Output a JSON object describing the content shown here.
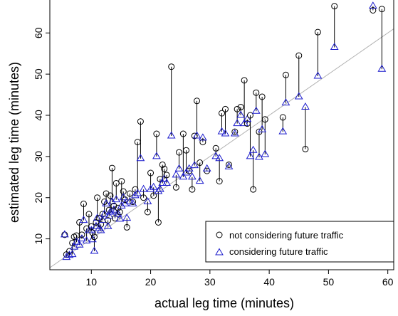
{
  "chart_data": {
    "type": "scatter",
    "title": "",
    "xlabel": "actual leg time (minutes)",
    "ylabel": "estimated leg time (minutes)",
    "xlim": [
      3,
      61
    ],
    "ylim": [
      2.5,
      68
    ],
    "xticks": [
      10,
      20,
      30,
      40,
      50,
      60
    ],
    "yticks": [
      10,
      20,
      30,
      40,
      50,
      60
    ],
    "grid": false,
    "legend_position": "bottom-right",
    "reference_line": {
      "from": [
        3,
        3
      ],
      "to": [
        61,
        61
      ],
      "color": "#b0b0b0"
    },
    "series": [
      {
        "name": "not considering future traffic",
        "marker": "circle",
        "color": "#000000"
      },
      {
        "name": "considering future traffic",
        "marker": "triangle",
        "color": "#1a1acc"
      }
    ],
    "pairs": [
      [
        5.5,
        11.0,
        11.0
      ],
      [
        5.8,
        6.2,
        5.5
      ],
      [
        6.3,
        7.0,
        6.0
      ],
      [
        6.8,
        9.0,
        6.2
      ],
      [
        7.1,
        10.5,
        8.0
      ],
      [
        7.5,
        10.8,
        9.2
      ],
      [
        8.0,
        14.0,
        8.5
      ],
      [
        8.4,
        11.0,
        10.0
      ],
      [
        8.7,
        18.5,
        14.5
      ],
      [
        9.2,
        12.5,
        9.5
      ],
      [
        9.6,
        16.0,
        12.0
      ],
      [
        10.0,
        13.0,
        12.0
      ],
      [
        10.2,
        11.5,
        9.8
      ],
      [
        10.5,
        10.5,
        7.0
      ],
      [
        10.8,
        14.0,
        13.0
      ],
      [
        11.0,
        20.0,
        15.0
      ],
      [
        11.3,
        15.0,
        12.5
      ],
      [
        11.6,
        13.5,
        12.0
      ],
      [
        11.9,
        16.0,
        14.5
      ],
      [
        12.2,
        19.0,
        16.0
      ],
      [
        12.5,
        21.0,
        18.5
      ],
      [
        12.8,
        14.5,
        13.0
      ],
      [
        13.0,
        17.0,
        15.5
      ],
      [
        13.2,
        20.5,
        16.5
      ],
      [
        13.5,
        27.2,
        19.0
      ],
      [
        13.8,
        18.0,
        17.0
      ],
      [
        14.0,
        15.0,
        16.5
      ],
      [
        14.2,
        23.5,
        19.5
      ],
      [
        14.5,
        17.5,
        16.0
      ],
      [
        14.8,
        16.5,
        14.8
      ],
      [
        15.1,
        24.0,
        18.0
      ],
      [
        15.4,
        21.5,
        20.0
      ],
      [
        15.7,
        19.5,
        18.5
      ],
      [
        16.0,
        12.8,
        15.0
      ],
      [
        16.5,
        21.0,
        19.0
      ],
      [
        17.0,
        19.0,
        18.5
      ],
      [
        17.4,
        22.0,
        20.5
      ],
      [
        17.8,
        33.5,
        21.0
      ],
      [
        18.3,
        38.5,
        29.5
      ],
      [
        18.8,
        20.0,
        22.0
      ],
      [
        19.5,
        16.5,
        19.0
      ],
      [
        20.0,
        26.0,
        22.0
      ],
      [
        20.5,
        20.5,
        22.5
      ],
      [
        21.0,
        35.5,
        30.0
      ],
      [
        21.3,
        14.0,
        21.5
      ],
      [
        21.6,
        24.5,
        22.0
      ],
      [
        22.0,
        28.0,
        23.5
      ],
      [
        22.3,
        27.0,
        24.5
      ],
      [
        22.7,
        25.5,
        23.5
      ],
      [
        23.5,
        51.8,
        35.0
      ],
      [
        24.3,
        22.5,
        25.5
      ],
      [
        24.8,
        31.0,
        27.0
      ],
      [
        25.5,
        35.5,
        25.0
      ],
      [
        26.0,
        31.5,
        26.0
      ],
      [
        26.5,
        26.5,
        27.0
      ],
      [
        27.0,
        22.0,
        25.0
      ],
      [
        27.4,
        35.0,
        27.8
      ],
      [
        27.8,
        43.5,
        35.0
      ],
      [
        28.3,
        28.5,
        24.0
      ],
      [
        28.8,
        33.5,
        34.5
      ],
      [
        29.5,
        26.5,
        27.0
      ],
      [
        31.0,
        32.0,
        30.0
      ],
      [
        31.6,
        24.0,
        29.5
      ],
      [
        32.0,
        40.5,
        36.0
      ],
      [
        32.6,
        41.5,
        35.5
      ],
      [
        33.2,
        28.0,
        27.5
      ],
      [
        34.2,
        36.0,
        35.5
      ],
      [
        34.6,
        41.5,
        38.0
      ],
      [
        35.2,
        42.0,
        40.0
      ],
      [
        35.8,
        48.5,
        38.0
      ],
      [
        36.3,
        38.0,
        39.0
      ],
      [
        36.8,
        40.0,
        30.0
      ],
      [
        37.3,
        22.0,
        31.5
      ],
      [
        37.8,
        45.5,
        41.0
      ],
      [
        38.3,
        36.0,
        29.8
      ],
      [
        38.8,
        44.5,
        36.5
      ],
      [
        39.3,
        39.0,
        30.5
      ],
      [
        42.3,
        39.5,
        36.0
      ],
      [
        42.8,
        49.8,
        43.0
      ],
      [
        45.0,
        54.5,
        44.5
      ],
      [
        46.1,
        31.8,
        42.0
      ],
      [
        48.2,
        60.2,
        49.5
      ],
      [
        51.0,
        66.5,
        56.5
      ],
      [
        57.5,
        65.5,
        66.5
      ],
      [
        59.0,
        65.8,
        51.2
      ]
    ]
  }
}
